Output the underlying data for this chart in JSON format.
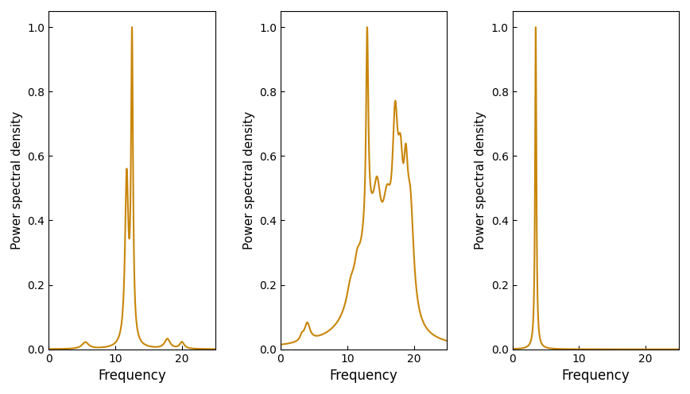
{
  "line_color": "#C8860A",
  "line_width": 1.5,
  "ylabel": "Power spectral density",
  "xlabel": "Frequency",
  "xlim": [
    0,
    25
  ],
  "ylim": [
    0,
    1.05
  ],
  "yticks": [
    0,
    0.2,
    0.4,
    0.6,
    0.8,
    1
  ],
  "xticks": [
    0,
    10,
    20
  ],
  "background_color": "#ffffff",
  "figsize": [
    8.68,
    4.96
  ],
  "dpi": 100
}
